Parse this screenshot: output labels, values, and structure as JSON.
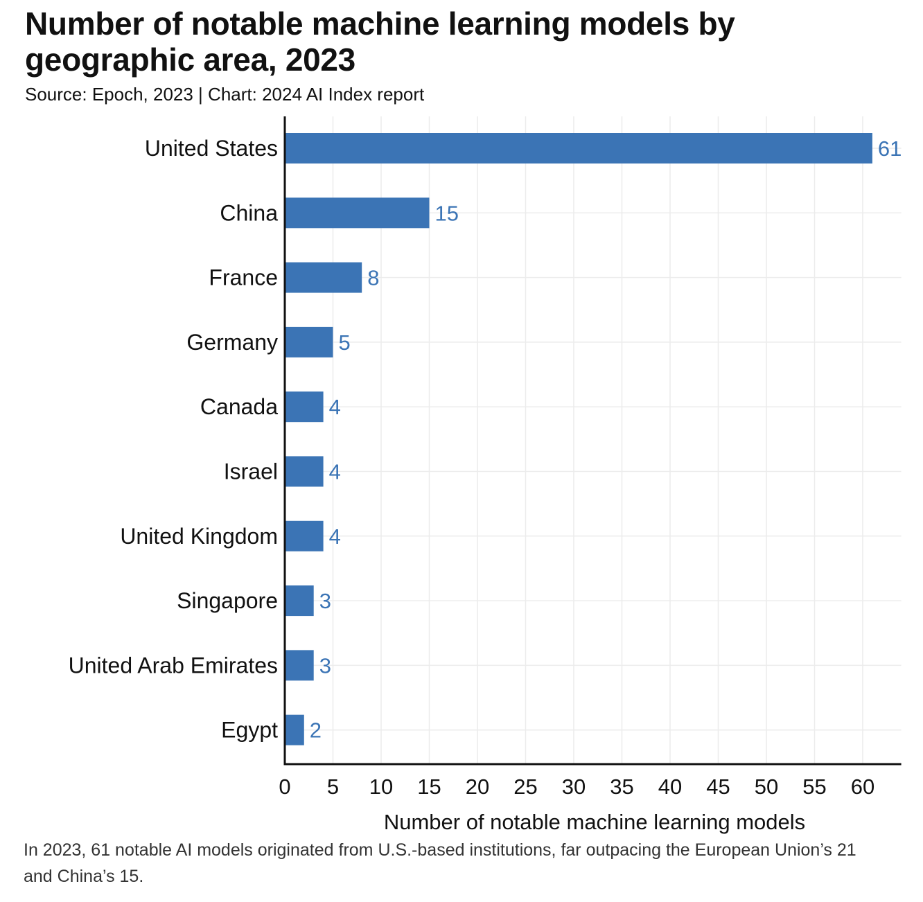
{
  "header": {
    "title": "Number of notable machine learning models by geographic area, 2023",
    "source": "Source: Epoch, 2023 | Chart: 2024 AI Index report"
  },
  "caption": "In 2023, 61 notable AI models originated from U.S.-based institutions, far outpacing the European Union’s 21 and China’s 15.",
  "colors": {
    "bar": "#3b74b5",
    "label": "#3b74b5",
    "grid": "#ececec",
    "axis": "#111111"
  },
  "chart_data": {
    "type": "bar",
    "orientation": "horizontal",
    "categories": [
      "United States",
      "China",
      "France",
      "Germany",
      "Canada",
      "Israel",
      "United Kingdom",
      "Singapore",
      "United Arab Emirates",
      "Egypt"
    ],
    "values": [
      61,
      15,
      8,
      5,
      4,
      4,
      4,
      3,
      3,
      2
    ],
    "data_labels": [
      "61",
      "15",
      "8",
      "5",
      "4",
      "4",
      "4",
      "3",
      "3",
      "2"
    ],
    "xlabel": "Number of notable machine learning models",
    "ylabel": "",
    "xlim": [
      0,
      64
    ],
    "xticks": [
      0,
      5,
      10,
      15,
      20,
      25,
      30,
      35,
      40,
      45,
      50,
      55,
      60
    ],
    "grid": true,
    "legend": "none"
  }
}
